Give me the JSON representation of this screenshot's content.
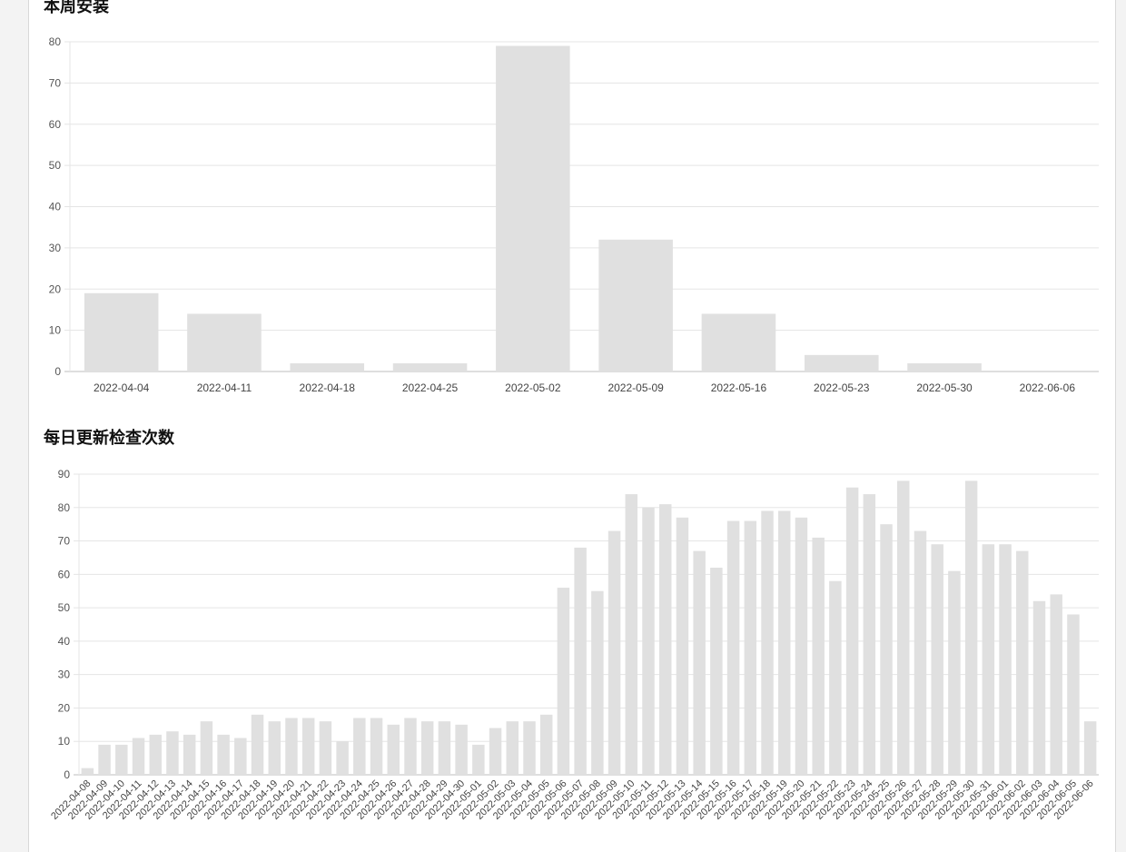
{
  "colors": {
    "bar": "#e0e0e0",
    "grid": "#e5e5e5",
    "axis": "#bdbdbd",
    "background": "#ffffff"
  },
  "charts": [
    {
      "title": "本周安装"
    },
    {
      "title": "每日更新检查次数"
    }
  ],
  "chart_data": [
    {
      "type": "bar",
      "title": "本周安装",
      "categories": [
        "2022-04-04",
        "2022-04-11",
        "2022-04-18",
        "2022-04-25",
        "2022-05-02",
        "2022-05-09",
        "2022-05-16",
        "2022-05-23",
        "2022-05-30",
        "2022-06-06"
      ],
      "values": [
        19,
        14,
        2,
        2,
        79,
        32,
        14,
        4,
        2,
        0
      ],
      "ylim": [
        0,
        80
      ],
      "yticks": [
        0,
        10,
        20,
        30,
        40,
        50,
        60,
        70,
        80
      ],
      "grid": true,
      "legend": "none"
    },
    {
      "type": "bar",
      "title": "每日更新检查次数",
      "categories": [
        "2022-04-08",
        "2022-04-09",
        "2022-04-10",
        "2022-04-11",
        "2022-04-12",
        "2022-04-13",
        "2022-04-14",
        "2022-04-15",
        "2022-04-16",
        "2022-04-17",
        "2022-04-18",
        "2022-04-19",
        "2022-04-20",
        "2022-04-21",
        "2022-04-22",
        "2022-04-23",
        "2022-04-24",
        "2022-04-25",
        "2022-04-26",
        "2022-04-27",
        "2022-04-28",
        "2022-04-29",
        "2022-04-30",
        "2022-05-01",
        "2022-05-02",
        "2022-05-03",
        "2022-05-04",
        "2022-05-05",
        "2022-05-06",
        "2022-05-07",
        "2022-05-08",
        "2022-05-09",
        "2022-05-10",
        "2022-05-11",
        "2022-05-12",
        "2022-05-13",
        "2022-05-14",
        "2022-05-15",
        "2022-05-16",
        "2022-05-17",
        "2022-05-18",
        "2022-05-19",
        "2022-05-20",
        "2022-05-21",
        "2022-05-22",
        "2022-05-23",
        "2022-05-24",
        "2022-05-25",
        "2022-05-26",
        "2022-05-27",
        "2022-05-28",
        "2022-05-29",
        "2022-05-30",
        "2022-05-31",
        "2022-06-01",
        "2022-06-02",
        "2022-06-03",
        "2022-06-04",
        "2022-06-05",
        "2022-06-06"
      ],
      "values": [
        2,
        9,
        9,
        11,
        12,
        13,
        12,
        16,
        12,
        11,
        18,
        16,
        17,
        17,
        16,
        10,
        17,
        17,
        15,
        17,
        16,
        16,
        15,
        9,
        14,
        16,
        16,
        18,
        56,
        68,
        55,
        73,
        84,
        80,
        81,
        77,
        67,
        62,
        76,
        76,
        79,
        79,
        77,
        71,
        58,
        86,
        84,
        75,
        88,
        73,
        69,
        61,
        88,
        69,
        69,
        67,
        52,
        54,
        48,
        16
      ],
      "ylim": [
        0,
        90
      ],
      "yticks": [
        0,
        10,
        20,
        30,
        40,
        50,
        60,
        70,
        80,
        90
      ],
      "grid": true,
      "legend": "none"
    }
  ]
}
